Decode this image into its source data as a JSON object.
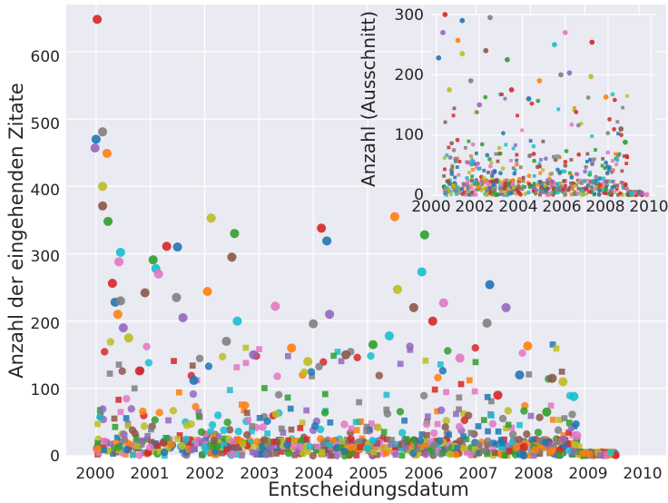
{
  "chart_data": [
    {
      "type": "scatter",
      "xlabel": "Entscheidungsdatum",
      "ylabel": "Anzahl der eingehenden Zitate",
      "xlim": [
        1999.45,
        2010.5
      ],
      "ylim": [
        0,
        670
      ],
      "x_ticks": [
        "2000",
        "2001",
        "2002",
        "2003",
        "2004",
        "2005",
        "2006",
        "2007",
        "2008",
        "2009",
        "2010"
      ],
      "y_ticks": [
        "0",
        "100",
        "200",
        "300",
        "400",
        "500",
        "600"
      ],
      "grid": true,
      "marker": "circle",
      "points": [
        {
          "x": 2000.02,
          "y": 648
        },
        {
          "x": 2000.0,
          "y": 470
        },
        {
          "x": 2000.12,
          "y": 481
        },
        {
          "x": 1999.98,
          "y": 457
        },
        {
          "x": 2000.2,
          "y": 449
        },
        {
          "x": 2000.12,
          "y": 400
        },
        {
          "x": 2000.12,
          "y": 371
        },
        {
          "x": 2000.22,
          "y": 348
        },
        {
          "x": 2000.45,
          "y": 302
        },
        {
          "x": 2000.42,
          "y": 288
        },
        {
          "x": 2000.3,
          "y": 256
        },
        {
          "x": 2000.35,
          "y": 228
        },
        {
          "x": 2000.45,
          "y": 230
        },
        {
          "x": 2000.5,
          "y": 190
        },
        {
          "x": 2000.4,
          "y": 210
        },
        {
          "x": 2000.6,
          "y": 175
        },
        {
          "x": 2000.9,
          "y": 242
        },
        {
          "x": 2001.05,
          "y": 291
        },
        {
          "x": 2001.1,
          "y": 278
        },
        {
          "x": 2001.15,
          "y": 270
        },
        {
          "x": 2001.3,
          "y": 311
        },
        {
          "x": 2001.5,
          "y": 310
        },
        {
          "x": 2001.48,
          "y": 235
        },
        {
          "x": 2001.6,
          "y": 205
        },
        {
          "x": 2002.05,
          "y": 244
        },
        {
          "x": 2002.12,
          "y": 353
        },
        {
          "x": 2002.5,
          "y": 295
        },
        {
          "x": 2002.55,
          "y": 330
        },
        {
          "x": 2002.6,
          "y": 200
        },
        {
          "x": 2003.3,
          "y": 222
        },
        {
          "x": 2004.15,
          "y": 338
        },
        {
          "x": 2004.25,
          "y": 319
        },
        {
          "x": 2004.0,
          "y": 196
        },
        {
          "x": 2004.3,
          "y": 210
        },
        {
          "x": 2005.5,
          "y": 355
        },
        {
          "x": 2005.55,
          "y": 247
        },
        {
          "x": 2005.85,
          "y": 220
        },
        {
          "x": 2006.05,
          "y": 328
        },
        {
          "x": 2006.0,
          "y": 273
        },
        {
          "x": 2006.4,
          "y": 227
        },
        {
          "x": 2006.2,
          "y": 200
        },
        {
          "x": 2007.25,
          "y": 254
        },
        {
          "x": 2007.2,
          "y": 197
        },
        {
          "x": 2007.55,
          "y": 220
        },
        {
          "x": 2007.95,
          "y": 163
        },
        {
          "x": 2008.6,
          "y": 110
        },
        {
          "x": 2008.4,
          "y": 115
        },
        {
          "x": 2008.3,
          "y": 65
        },
        {
          "x": 2008.8,
          "y": 88
        },
        {
          "x": 2008.85,
          "y": 30
        },
        {
          "x": 2000.8,
          "y": 126
        },
        {
          "x": 2001.8,
          "y": 112
        },
        {
          "x": 2002.4,
          "y": 170
        },
        {
          "x": 2002.9,
          "y": 150
        },
        {
          "x": 2003.6,
          "y": 160
        },
        {
          "x": 2003.9,
          "y": 140
        },
        {
          "x": 2004.6,
          "y": 150
        },
        {
          "x": 2005.1,
          "y": 165
        },
        {
          "x": 2005.4,
          "y": 178
        },
        {
          "x": 2006.7,
          "y": 145
        },
        {
          "x": 2007.4,
          "y": 90
        },
        {
          "x": 2007.8,
          "y": 120
        }
      ]
    },
    {
      "type": "scatter",
      "xlabel": "",
      "ylabel": "Anzahl (Ausschnitt)",
      "xlim": [
        1999.75,
        2010.2
      ],
      "ylim": [
        0,
        300
      ],
      "x_ticks": [
        "2000",
        "2002",
        "2004",
        "2006",
        "2008",
        "2010"
      ],
      "y_ticks": [
        "0",
        "100",
        "200",
        "300"
      ],
      "grid": true,
      "points": [
        {
          "x": 2000.4,
          "y": 300
        },
        {
          "x": 2001.2,
          "y": 290
        },
        {
          "x": 2002.5,
          "y": 295
        },
        {
          "x": 2000.3,
          "y": 270
        },
        {
          "x": 2001.0,
          "y": 257
        },
        {
          "x": 2001.2,
          "y": 235
        },
        {
          "x": 2002.3,
          "y": 240
        },
        {
          "x": 2003.3,
          "y": 225
        },
        {
          "x": 2005.5,
          "y": 250
        },
        {
          "x": 2006.0,
          "y": 270
        },
        {
          "x": 2007.25,
          "y": 254
        },
        {
          "x": 2000.1,
          "y": 228
        },
        {
          "x": 2005.8,
          "y": 200
        },
        {
          "x": 2006.2,
          "y": 203
        },
        {
          "x": 2007.9,
          "y": 163
        },
        {
          "x": 2007.2,
          "y": 197
        },
        {
          "x": 2008.6,
          "y": 110
        },
        {
          "x": 2008.8,
          "y": 88
        },
        {
          "x": 2009.1,
          "y": 3
        },
        {
          "x": 2009.8,
          "y": 1
        },
        {
          "x": 2003.5,
          "y": 175
        },
        {
          "x": 2004.3,
          "y": 160
        },
        {
          "x": 2001.6,
          "y": 190
        },
        {
          "x": 2002.0,
          "y": 150
        },
        {
          "x": 2004.8,
          "y": 190
        },
        {
          "x": 2000.6,
          "y": 175
        }
      ]
    }
  ]
}
